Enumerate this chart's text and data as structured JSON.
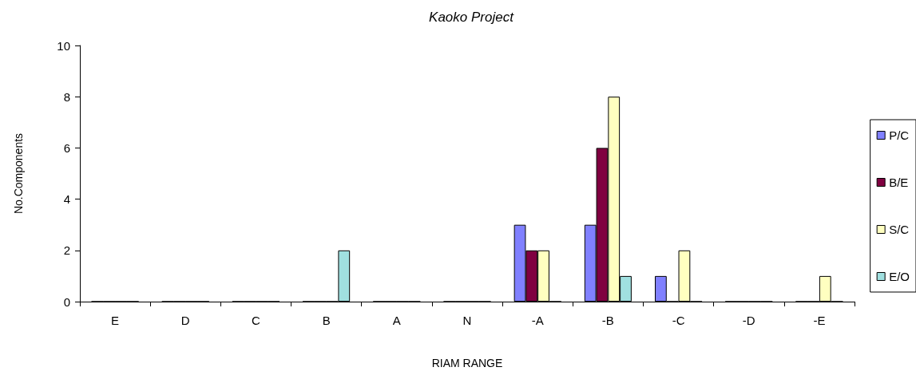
{
  "chart_data": {
    "type": "bar",
    "title": "Kaoko Project",
    "xlabel": "RIAM RANGE",
    "ylabel": "No.Components",
    "categories": [
      "E",
      "D",
      "C",
      "B",
      "A",
      "N",
      "-A",
      "-B",
      "-C",
      "-D",
      "-E"
    ],
    "series": [
      {
        "name": "P/C",
        "color": "#8080ff",
        "values": [
          0,
          0,
          0,
          0,
          0,
          0,
          3,
          3,
          1,
          0,
          0
        ]
      },
      {
        "name": "B/E",
        "color": "#800040",
        "values": [
          0,
          0,
          0,
          0,
          0,
          0,
          2,
          6,
          0,
          0,
          0
        ]
      },
      {
        "name": "S/C",
        "color": "#ffffc0",
        "values": [
          0,
          0,
          0,
          0,
          0,
          0,
          2,
          8,
          2,
          0,
          1
        ]
      },
      {
        "name": "E/O",
        "color": "#a0e0e0",
        "values": [
          0,
          0,
          0,
          2,
          0,
          0,
          0,
          1,
          0,
          0,
          0
        ]
      }
    ],
    "ylim": [
      0,
      10
    ],
    "yticks": [
      0,
      2,
      4,
      6,
      8,
      10
    ],
    "grid": false,
    "legend": "right"
  }
}
